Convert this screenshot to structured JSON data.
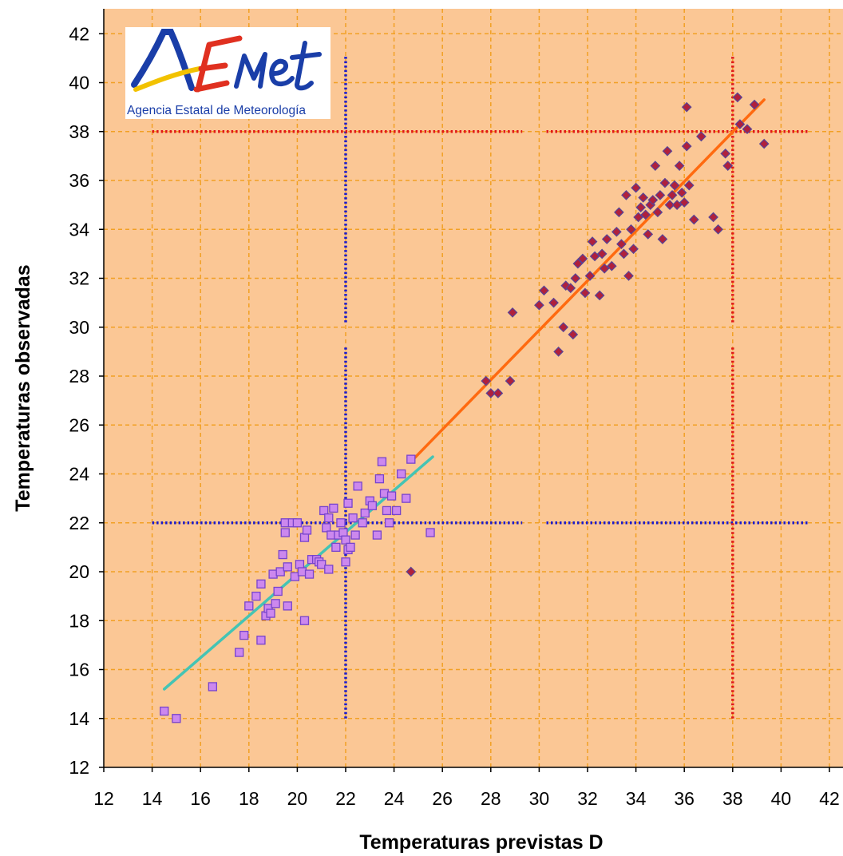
{
  "chart_data": {
    "type": "scatter",
    "xlabel": "Temperaturas previstas D",
    "ylabel": "Temperaturas observadas",
    "xlim": [
      12,
      42
    ],
    "ylim": [
      12,
      42
    ],
    "xticks": [
      12,
      14,
      16,
      18,
      20,
      22,
      24,
      26,
      28,
      30,
      32,
      34,
      36,
      38,
      40,
      42
    ],
    "yticks": [
      12,
      14,
      16,
      18,
      20,
      22,
      24,
      26,
      28,
      30,
      32,
      34,
      36,
      38,
      40,
      42
    ],
    "grid": true,
    "colors": {
      "plot_background": "#fbc795",
      "grid": "#f2a024",
      "cool_series": "#cc88ee",
      "cool_series_edge": "#7744cc",
      "cool_trend": "#44c4b4",
      "hot_series": "#b0203c",
      "hot_series_edge": "#554499",
      "hot_trend": "#ff6a10",
      "threshold_22": "#1a1acc",
      "threshold_38": "#e01818"
    },
    "series": [
      {
        "marker": "square",
        "points": [
          [
            14.5,
            14.3
          ],
          [
            15.0,
            14.0
          ],
          [
            16.5,
            15.3
          ],
          [
            17.6,
            16.7
          ],
          [
            17.8,
            17.4
          ],
          [
            18.5,
            17.2
          ],
          [
            18.0,
            18.6
          ],
          [
            18.3,
            19.0
          ],
          [
            18.5,
            19.5
          ],
          [
            18.7,
            18.2
          ],
          [
            18.8,
            18.5
          ],
          [
            18.9,
            18.3
          ],
          [
            19.0,
            19.9
          ],
          [
            19.1,
            18.7
          ],
          [
            19.2,
            19.2
          ],
          [
            19.3,
            20.0
          ],
          [
            19.4,
            20.7
          ],
          [
            19.5,
            21.6
          ],
          [
            19.5,
            22.0
          ],
          [
            19.6,
            20.2
          ],
          [
            19.6,
            18.6
          ],
          [
            19.8,
            22.0
          ],
          [
            19.9,
            19.8
          ],
          [
            20.0,
            22.0
          ],
          [
            20.1,
            20.3
          ],
          [
            20.2,
            20.0
          ],
          [
            20.3,
            21.4
          ],
          [
            20.3,
            18.0
          ],
          [
            20.4,
            21.7
          ],
          [
            20.5,
            19.9
          ],
          [
            20.6,
            20.5
          ],
          [
            20.8,
            20.5
          ],
          [
            20.9,
            20.4
          ],
          [
            21.0,
            20.3
          ],
          [
            21.1,
            22.5
          ],
          [
            21.2,
            21.8
          ],
          [
            21.3,
            20.1
          ],
          [
            21.3,
            22.2
          ],
          [
            21.4,
            21.5
          ],
          [
            21.5,
            22.6
          ],
          [
            21.6,
            21.0
          ],
          [
            21.7,
            21.5
          ],
          [
            21.8,
            22.0
          ],
          [
            21.9,
            21.6
          ],
          [
            22.0,
            20.4
          ],
          [
            22.0,
            21.3
          ],
          [
            22.1,
            22.8
          ],
          [
            22.1,
            20.9
          ],
          [
            22.2,
            21.0
          ],
          [
            22.3,
            22.2
          ],
          [
            22.4,
            21.5
          ],
          [
            22.5,
            23.5
          ],
          [
            22.7,
            22.0
          ],
          [
            22.8,
            22.4
          ],
          [
            23.0,
            22.9
          ],
          [
            23.1,
            22.7
          ],
          [
            23.3,
            21.5
          ],
          [
            23.4,
            23.8
          ],
          [
            23.5,
            24.5
          ],
          [
            23.6,
            23.2
          ],
          [
            23.7,
            22.5
          ],
          [
            23.8,
            22.0
          ],
          [
            23.9,
            23.1
          ],
          [
            24.1,
            22.5
          ],
          [
            24.3,
            24.0
          ],
          [
            24.5,
            23.0
          ],
          [
            24.7,
            24.6
          ],
          [
            25.5,
            21.6
          ]
        ]
      },
      {
        "marker": "diamond",
        "points": [
          [
            24.7,
            20.0
          ],
          [
            27.8,
            27.8
          ],
          [
            28.0,
            27.3
          ],
          [
            28.3,
            27.3
          ],
          [
            28.8,
            27.8
          ],
          [
            28.9,
            30.6
          ],
          [
            30.0,
            30.9
          ],
          [
            30.2,
            31.5
          ],
          [
            30.6,
            31.0
          ],
          [
            30.8,
            29.0
          ],
          [
            31.0,
            30.0
          ],
          [
            31.1,
            31.7
          ],
          [
            31.3,
            31.6
          ],
          [
            31.4,
            29.7
          ],
          [
            31.5,
            32.0
          ],
          [
            31.6,
            32.6
          ],
          [
            31.8,
            32.8
          ],
          [
            31.9,
            31.4
          ],
          [
            32.1,
            32.1
          ],
          [
            32.2,
            33.5
          ],
          [
            32.3,
            32.9
          ],
          [
            32.5,
            31.3
          ],
          [
            32.6,
            33.0
          ],
          [
            32.7,
            32.4
          ],
          [
            32.8,
            33.6
          ],
          [
            33.0,
            32.5
          ],
          [
            33.2,
            33.9
          ],
          [
            33.3,
            34.7
          ],
          [
            33.4,
            33.4
          ],
          [
            33.5,
            33.0
          ],
          [
            33.6,
            35.4
          ],
          [
            33.7,
            32.1
          ],
          [
            33.8,
            34.0
          ],
          [
            33.9,
            33.2
          ],
          [
            34.0,
            35.7
          ],
          [
            34.1,
            34.5
          ],
          [
            34.2,
            34.9
          ],
          [
            34.3,
            35.3
          ],
          [
            34.4,
            34.6
          ],
          [
            34.5,
            33.8
          ],
          [
            34.6,
            35.0
          ],
          [
            34.7,
            35.2
          ],
          [
            34.8,
            36.6
          ],
          [
            34.9,
            34.7
          ],
          [
            35.0,
            35.4
          ],
          [
            35.1,
            33.6
          ],
          [
            35.2,
            35.9
          ],
          [
            35.3,
            37.2
          ],
          [
            35.4,
            35.0
          ],
          [
            35.5,
            35.4
          ],
          [
            35.6,
            35.8
          ],
          [
            35.7,
            35.0
          ],
          [
            35.8,
            36.6
          ],
          [
            35.9,
            35.5
          ],
          [
            36.0,
            35.1
          ],
          [
            36.1,
            39.0
          ],
          [
            36.1,
            37.4
          ],
          [
            36.2,
            35.8
          ],
          [
            36.4,
            34.4
          ],
          [
            36.7,
            37.8
          ],
          [
            37.2,
            34.5
          ],
          [
            37.4,
            34.0
          ],
          [
            37.7,
            37.1
          ],
          [
            37.8,
            36.6
          ],
          [
            38.2,
            39.4
          ],
          [
            38.3,
            38.3
          ],
          [
            38.6,
            38.1
          ],
          [
            38.9,
            39.1
          ],
          [
            39.3,
            37.5
          ]
        ]
      }
    ],
    "trend_lines": [
      {
        "series_index": 0,
        "from": [
          14.5,
          15.2
        ],
        "to": [
          25.6,
          24.7
        ]
      },
      {
        "series_index": 1,
        "from": [
          24.7,
          24.5
        ],
        "to": [
          39.3,
          39.3
        ]
      }
    ],
    "reference_lines": [
      {
        "color_key": "threshold_22",
        "orientation": "vertical",
        "value": 22,
        "segments": [
          [
            14,
            29.2
          ],
          [
            30.2,
            41.1
          ]
        ]
      },
      {
        "color_key": "threshold_22",
        "orientation": "horizontal",
        "value": 22,
        "segments": [
          [
            14,
            29.3
          ],
          [
            30.3,
            41.1
          ]
        ]
      },
      {
        "color_key": "threshold_38",
        "orientation": "vertical",
        "value": 38,
        "segments": [
          [
            14,
            29.2
          ],
          [
            30.2,
            41.1
          ]
        ]
      },
      {
        "color_key": "threshold_38",
        "orientation": "horizontal",
        "value": 38,
        "segments": [
          [
            14,
            29.3
          ],
          [
            30.3,
            41.1
          ]
        ]
      }
    ]
  },
  "logo": {
    "wordmark": "AEMet",
    "tagline": "Agencia Estatal de Meteorología",
    "colors": [
      "#1a3ea8",
      "#f2c200",
      "#e03020"
    ]
  }
}
